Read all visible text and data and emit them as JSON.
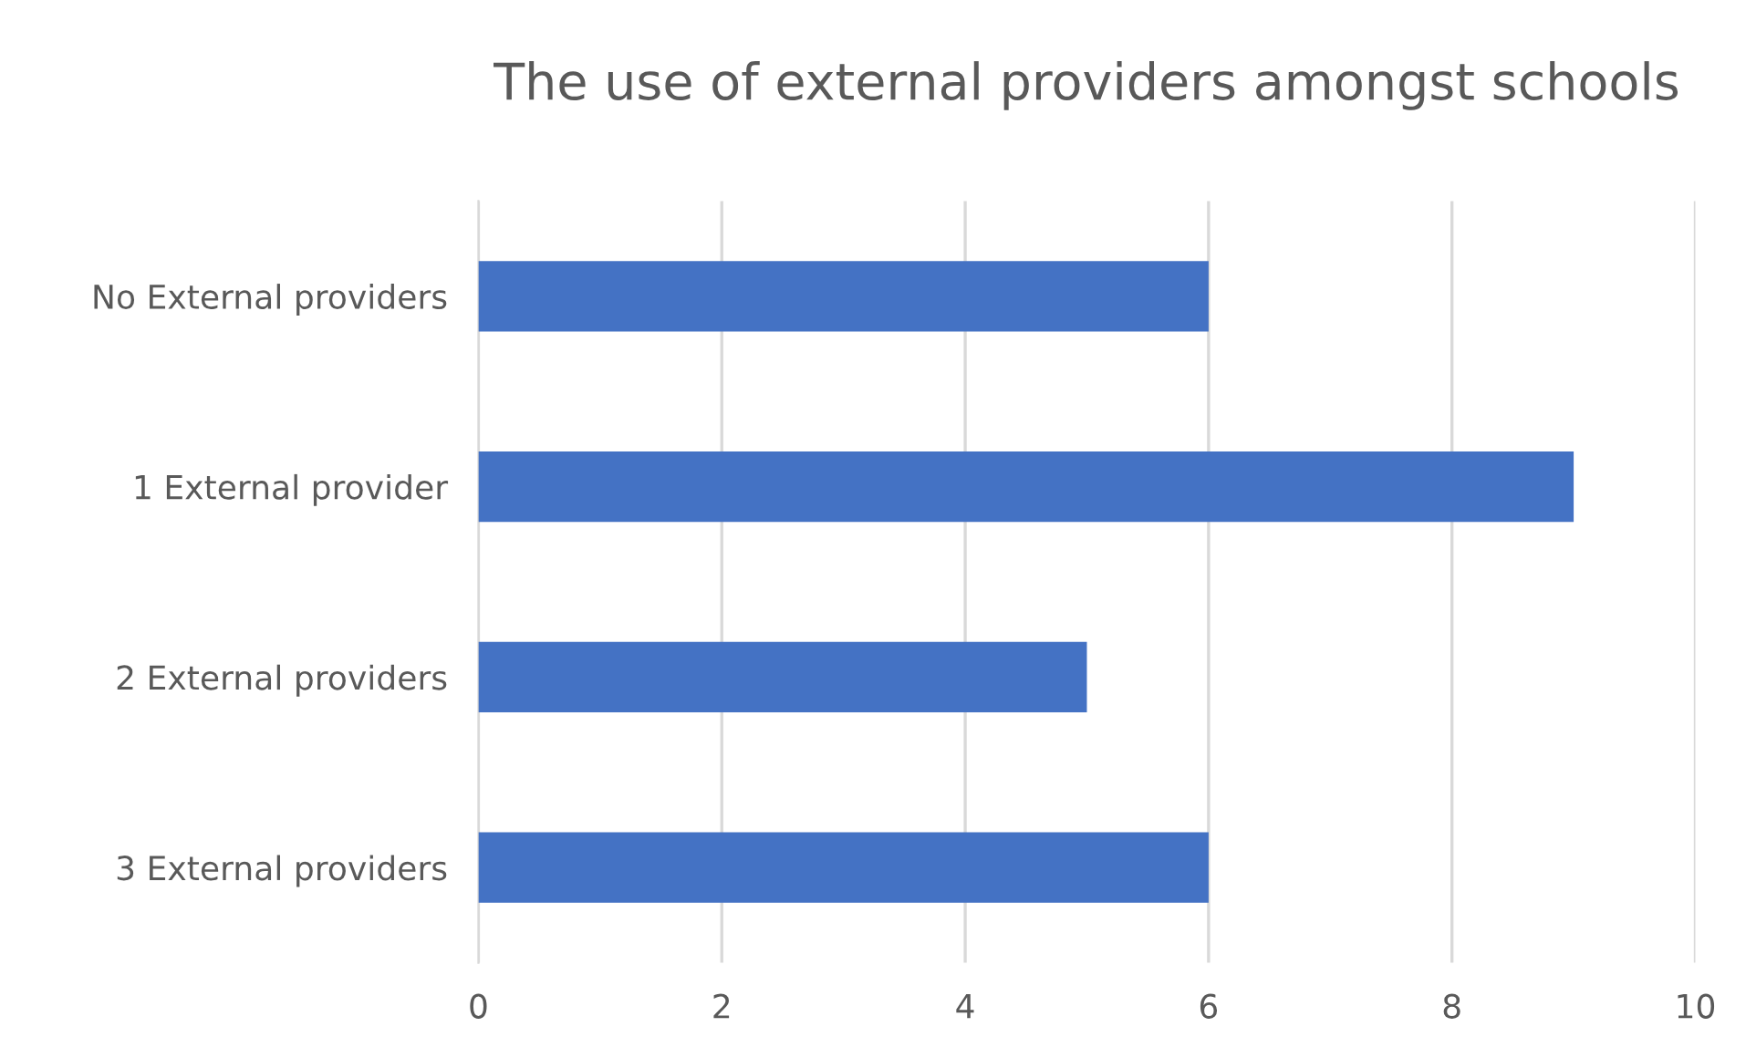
{
  "chart_data": {
    "type": "bar",
    "orientation": "horizontal",
    "title": "The use of external providers amongst schools",
    "categories": [
      "No External providers",
      "1 External provider",
      "2 External providers",
      "3 External providers"
    ],
    "values": [
      6,
      9,
      5,
      6
    ],
    "color": "#4472c4",
    "xlim": [
      0,
      10
    ],
    "xticks": [
      0,
      2,
      4,
      6,
      8,
      10
    ],
    "grid": "x",
    "legend": false
  }
}
